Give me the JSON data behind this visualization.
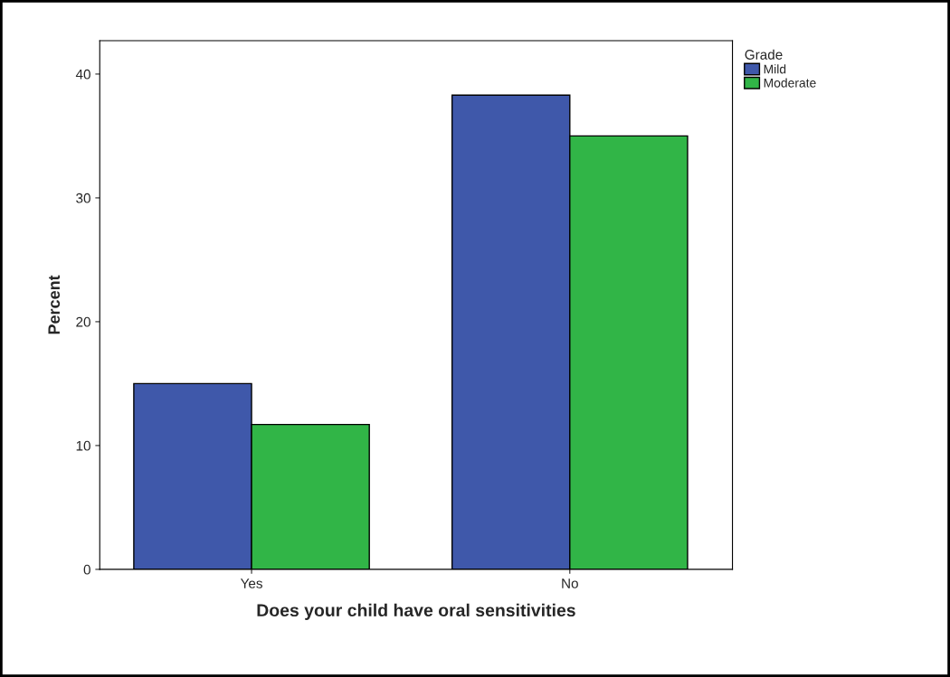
{
  "chart_data": {
    "type": "bar",
    "xlabel": "Does your child have oral sensitivities",
    "ylabel": "Percent",
    "legend_title": "Grade",
    "categories": [
      "Yes",
      "No"
    ],
    "series": [
      {
        "name": "Mild",
        "color": "#3f58aa",
        "values": [
          15.0,
          38.3
        ]
      },
      {
        "name": "Moderate",
        "color": "#31b547",
        "values": [
          11.7,
          35.0
        ]
      }
    ],
    "ylim": [
      0,
      42.7
    ],
    "yticks": [
      0,
      10,
      20,
      30,
      40
    ],
    "grid": false,
    "legend": "top right"
  }
}
